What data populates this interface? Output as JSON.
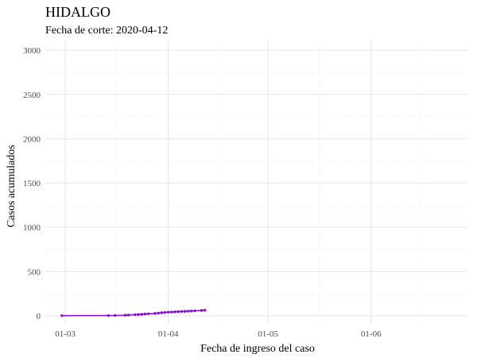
{
  "chart_data": {
    "type": "line",
    "title": "HIDALGO",
    "subtitle": "Fecha de corte: 2020-04-12",
    "xlabel": "Fecha de ingreso del caso",
    "ylabel": "Casos acumulados",
    "xlim": [
      "2020-02-24",
      "2020-06-30"
    ],
    "ylim": [
      -100,
      3100
    ],
    "x_ticks": [
      {
        "date": "2020-03-01",
        "label": "01-03"
      },
      {
        "date": "2020-04-01",
        "label": "01-04"
      },
      {
        "date": "2020-05-01",
        "label": "01-05"
      },
      {
        "date": "2020-06-01",
        "label": "01-06"
      }
    ],
    "y_ticks": [
      0,
      500,
      1000,
      1500,
      2000,
      2500,
      3000
    ],
    "grid": true,
    "legend": "none",
    "series": [
      {
        "color": "#8a08d8",
        "points": [
          {
            "x": "2020-02-29",
            "y": 1
          },
          {
            "x": "2020-03-14",
            "y": 2
          },
          {
            "x": "2020-03-16",
            "y": 3
          },
          {
            "x": "2020-03-19",
            "y": 6
          },
          {
            "x": "2020-03-20",
            "y": 8
          },
          {
            "x": "2020-03-22",
            "y": 12
          },
          {
            "x": "2020-03-23",
            "y": 14
          },
          {
            "x": "2020-03-24",
            "y": 16
          },
          {
            "x": "2020-03-25",
            "y": 19
          },
          {
            "x": "2020-03-26",
            "y": 22
          },
          {
            "x": "2020-03-28",
            "y": 26
          },
          {
            "x": "2020-03-29",
            "y": 30
          },
          {
            "x": "2020-03-30",
            "y": 34
          },
          {
            "x": "2020-03-31",
            "y": 37
          },
          {
            "x": "2020-04-01",
            "y": 40
          },
          {
            "x": "2020-04-02",
            "y": 42
          },
          {
            "x": "2020-04-03",
            "y": 44
          },
          {
            "x": "2020-04-04",
            "y": 46
          },
          {
            "x": "2020-04-05",
            "y": 48
          },
          {
            "x": "2020-04-06",
            "y": 50
          },
          {
            "x": "2020-04-07",
            "y": 52
          },
          {
            "x": "2020-04-08",
            "y": 54
          },
          {
            "x": "2020-04-09",
            "y": 56
          },
          {
            "x": "2020-04-11",
            "y": 60
          },
          {
            "x": "2020-04-12",
            "y": 62
          }
        ]
      }
    ]
  }
}
